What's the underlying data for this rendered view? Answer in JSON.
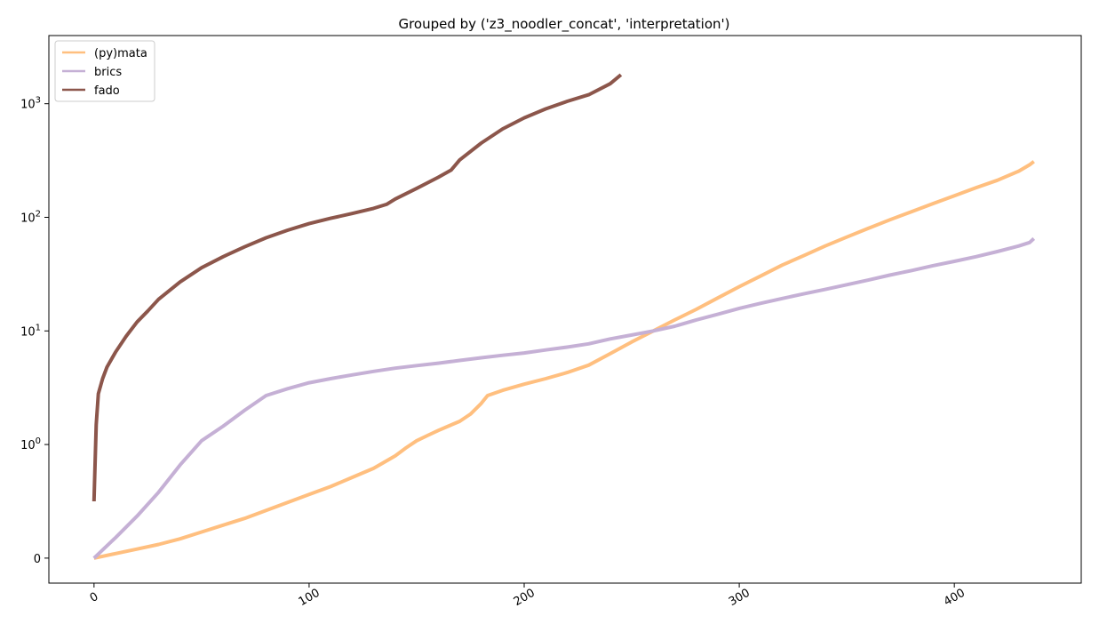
{
  "chart_data": {
    "type": "line",
    "title": "Grouped by ('z3_noodler_concat', 'interpretation')",
    "xlabel": "",
    "ylabel": "",
    "yscale": "symlog",
    "xlim": [
      -21,
      459
    ],
    "xticks": [
      {
        "value": 0,
        "label": "0"
      },
      {
        "value": 100,
        "label": "100"
      },
      {
        "value": 200,
        "label": "200"
      },
      {
        "value": 300,
        "label": "300"
      },
      {
        "value": 400,
        "label": "400"
      }
    ],
    "yticks": [
      {
        "value": 0,
        "label": "0",
        "base": "",
        "exp": ""
      },
      {
        "value": 1,
        "label": "10^0",
        "base": "10",
        "exp": "0"
      },
      {
        "value": 10,
        "label": "10^1",
        "base": "10",
        "exp": "1"
      },
      {
        "value": 100,
        "label": "10^2",
        "base": "10",
        "exp": "2"
      },
      {
        "value": 1000,
        "label": "10^3",
        "base": "10",
        "exp": "3"
      }
    ],
    "grid": false,
    "legend_position": "top-left",
    "series": [
      {
        "name": "(py)mata",
        "color": "#ffbf7f",
        "points": [
          [
            0,
            0
          ],
          [
            10,
            0.04
          ],
          [
            20,
            0.08
          ],
          [
            30,
            0.12
          ],
          [
            40,
            0.17
          ],
          [
            50,
            0.23
          ],
          [
            60,
            0.29
          ],
          [
            70,
            0.35
          ],
          [
            80,
            0.42
          ],
          [
            90,
            0.49
          ],
          [
            100,
            0.56
          ],
          [
            110,
            0.63
          ],
          [
            120,
            0.71
          ],
          [
            130,
            0.79
          ],
          [
            140,
            0.9
          ],
          [
            145,
            0.97
          ],
          [
            150,
            1.08
          ],
          [
            155,
            1.2
          ],
          [
            160,
            1.33
          ],
          [
            165,
            1.46
          ],
          [
            170,
            1.6
          ],
          [
            175,
            1.85
          ],
          [
            180,
            2.3
          ],
          [
            183,
            2.7
          ],
          [
            190,
            3.0
          ],
          [
            200,
            3.4
          ],
          [
            210,
            3.8
          ],
          [
            220,
            4.3
          ],
          [
            230,
            5.0
          ],
          [
            240,
            6.3
          ],
          [
            250,
            8.0
          ],
          [
            260,
            10.0
          ],
          [
            270,
            12.5
          ],
          [
            280,
            15.5
          ],
          [
            290,
            19.5
          ],
          [
            300,
            24.5
          ],
          [
            310,
            30.5
          ],
          [
            320,
            38
          ],
          [
            330,
            46
          ],
          [
            340,
            56
          ],
          [
            350,
            67
          ],
          [
            360,
            80
          ],
          [
            370,
            95
          ],
          [
            380,
            112
          ],
          [
            390,
            132
          ],
          [
            400,
            155
          ],
          [
            410,
            182
          ],
          [
            420,
            212
          ],
          [
            430,
            255
          ],
          [
            435,
            290
          ],
          [
            437,
            310
          ]
        ]
      },
      {
        "name": "brics",
        "color": "#c5b0d5",
        "points": [
          [
            0,
            0
          ],
          [
            10,
            0.18
          ],
          [
            20,
            0.37
          ],
          [
            30,
            0.58
          ],
          [
            40,
            0.82
          ],
          [
            50,
            1.08
          ],
          [
            60,
            1.45
          ],
          [
            70,
            2.0
          ],
          [
            80,
            2.7
          ],
          [
            90,
            3.1
          ],
          [
            100,
            3.5
          ],
          [
            110,
            3.8
          ],
          [
            120,
            4.1
          ],
          [
            130,
            4.4
          ],
          [
            140,
            4.7
          ],
          [
            150,
            4.95
          ],
          [
            160,
            5.2
          ],
          [
            170,
            5.5
          ],
          [
            180,
            5.8
          ],
          [
            190,
            6.1
          ],
          [
            200,
            6.4
          ],
          [
            210,
            6.8
          ],
          [
            220,
            7.2
          ],
          [
            230,
            7.7
          ],
          [
            240,
            8.5
          ],
          [
            250,
            9.2
          ],
          [
            260,
            10.0
          ],
          [
            270,
            11.0
          ],
          [
            280,
            12.5
          ],
          [
            290,
            14.0
          ],
          [
            300,
            15.8
          ],
          [
            310,
            17.5
          ],
          [
            320,
            19.3
          ],
          [
            330,
            21.2
          ],
          [
            340,
            23.2
          ],
          [
            350,
            25.5
          ],
          [
            360,
            28
          ],
          [
            370,
            31
          ],
          [
            380,
            34
          ],
          [
            390,
            37.5
          ],
          [
            400,
            41
          ],
          [
            410,
            45
          ],
          [
            420,
            50
          ],
          [
            430,
            56
          ],
          [
            435,
            60
          ],
          [
            437,
            65
          ]
        ]
      },
      {
        "name": "fado",
        "color": "#8c564b",
        "points": [
          [
            0,
            0.5
          ],
          [
            1,
            1.5
          ],
          [
            2,
            2.8
          ],
          [
            4,
            3.8
          ],
          [
            6,
            4.8
          ],
          [
            10,
            6.5
          ],
          [
            15,
            9
          ],
          [
            20,
            12
          ],
          [
            25,
            15
          ],
          [
            30,
            19
          ],
          [
            40,
            27
          ],
          [
            50,
            36
          ],
          [
            60,
            45
          ],
          [
            70,
            55
          ],
          [
            80,
            66
          ],
          [
            90,
            77
          ],
          [
            100,
            88
          ],
          [
            110,
            98
          ],
          [
            120,
            108
          ],
          [
            130,
            120
          ],
          [
            136,
            130
          ],
          [
            140,
            145
          ],
          [
            150,
            180
          ],
          [
            160,
            225
          ],
          [
            166,
            260
          ],
          [
            170,
            320
          ],
          [
            180,
            450
          ],
          [
            190,
            600
          ],
          [
            200,
            750
          ],
          [
            210,
            900
          ],
          [
            220,
            1050
          ],
          [
            230,
            1200
          ],
          [
            240,
            1500
          ],
          [
            245,
            1800
          ]
        ]
      }
    ]
  }
}
